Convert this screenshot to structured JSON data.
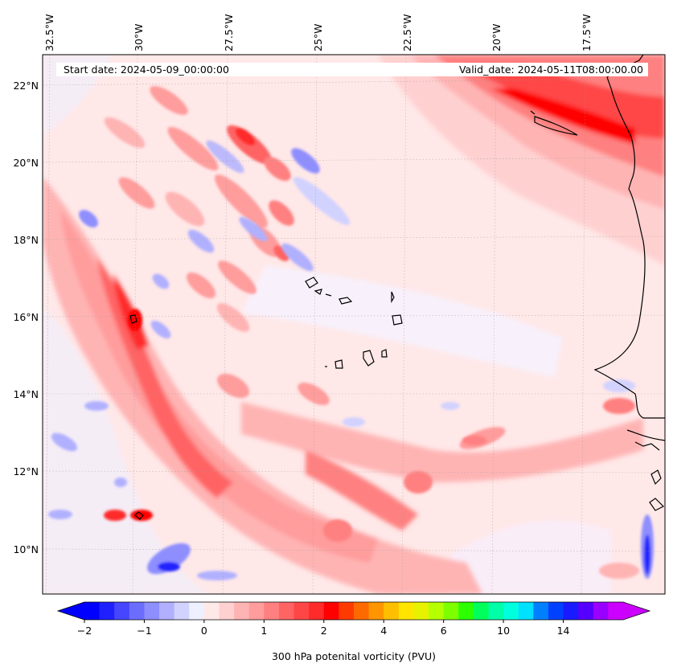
{
  "header": {
    "start_date": "Start date: 2024-05-09_00:00:00",
    "valid_date": "Valid_date: 2024-05-11T08:00:00.00"
  },
  "axes": {
    "lon_labels": [
      "32.5°W",
      "30°W",
      "27.5°W",
      "25°W",
      "22.5°W",
      "20°W",
      "17.5°W"
    ],
    "lat_labels": [
      "22°N",
      "20°N",
      "18°N",
      "16°N",
      "14°N",
      "12°N",
      "10°N"
    ]
  },
  "colorbar": {
    "label": "300 hPa potenital vorticity (PVU)",
    "tick_labels": [
      "−2",
      "−1",
      "0",
      "1",
      "2",
      "4",
      "6",
      "10",
      "14"
    ],
    "colors": [
      "#0000ff",
      "#2020ff",
      "#4646ff",
      "#6c6cff",
      "#8e8eff",
      "#b0b0ff",
      "#d2d2ff",
      "#eef0ff",
      "#ffe8e8",
      "#ffd0d0",
      "#ffb4b4",
      "#ff9c9c",
      "#ff8080",
      "#ff6464",
      "#ff4646",
      "#ff2a2a",
      "#ff0000",
      "#ff3a00",
      "#ff6a00",
      "#ff9500",
      "#ffbf00",
      "#ffe500",
      "#e6f200",
      "#b5ff00",
      "#7dff00",
      "#2bff00",
      "#00ff5a",
      "#00ffa8",
      "#00ffdc",
      "#00e0ff",
      "#0080ff",
      "#0040ff",
      "#1a1aff",
      "#5500ff",
      "#9900ff",
      "#cc00ff"
    ],
    "extend_low": "#0000ff",
    "extend_high": "#cc00ff"
  },
  "field": {
    "background": "#ffe8e8",
    "strong_red": "#ff2a2a",
    "mid_red": "#ff8080",
    "light_red": "#ffb4b4",
    "pale_red": "#ffd0d0",
    "blue_light": "#eef0ff",
    "blue_mid": "#b0b0ff",
    "blue_strong": "#4646ff",
    "coast": "#000000"
  }
}
